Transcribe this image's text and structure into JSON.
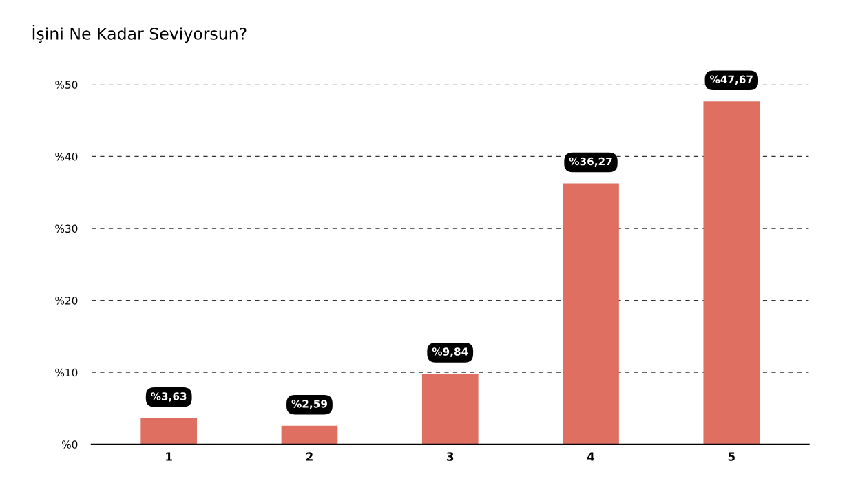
{
  "chart_data": {
    "type": "bar",
    "title": "İşini Ne Kadar Seviyorsun?",
    "categories": [
      "1",
      "2",
      "3",
      "4",
      "5"
    ],
    "values": [
      3.63,
      2.59,
      9.84,
      36.27,
      47.67
    ],
    "value_labels": [
      "%3,63",
      "%2,59",
      "%9,84",
      "%36,27",
      "%47,67"
    ],
    "color": "#df7061",
    "ylim": [
      0,
      50
    ],
    "yticks": [
      {
        "value": 0,
        "label": "%0"
      },
      {
        "value": 10,
        "label": "%10"
      },
      {
        "value": 20,
        "label": "%20"
      },
      {
        "value": 30,
        "label": "%30"
      },
      {
        "value": 40,
        "label": "%40"
      },
      {
        "value": 50,
        "label": "%50"
      }
    ],
    "grid": "y",
    "line_style": "dashed"
  }
}
